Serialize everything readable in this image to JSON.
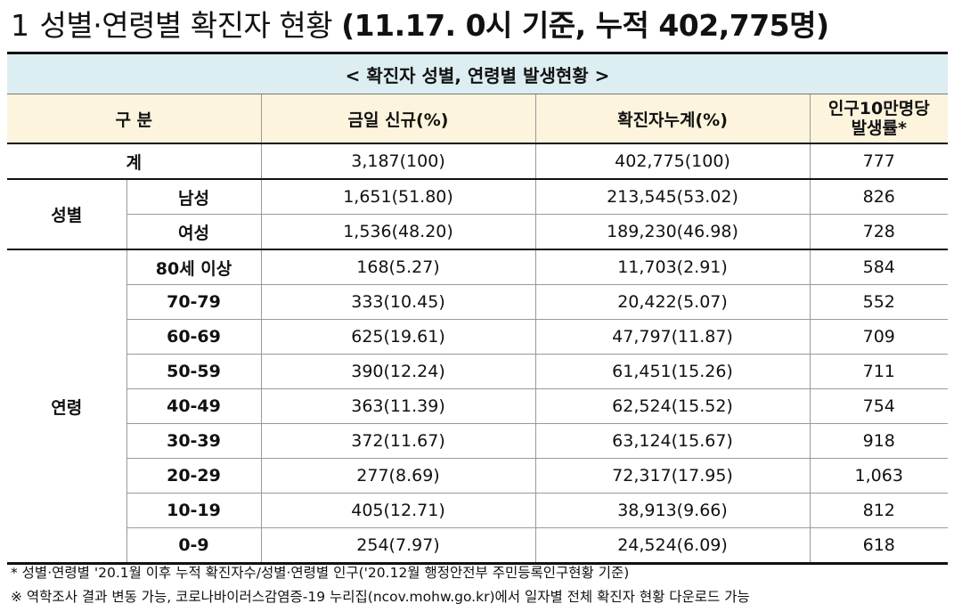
{
  "title": {
    "number": "1",
    "text": "성별·연령별 확진자 현황",
    "detail": "(11.17. 0시 기준, 누적 402,775명)"
  },
  "table": {
    "caption": "< 확진자 성별, 연령별 발생현황 >",
    "headers": {
      "category": "구 분",
      "new_today": "금일 신규(%)",
      "cumulative": "확진자누계(%)",
      "rate_line1": "인구10만명당",
      "rate_line2": "발생률*"
    },
    "total": {
      "label": "계",
      "new": "3,187(100)",
      "cumulative": "402,775(100)",
      "rate": "777"
    },
    "sex": {
      "group": "성별",
      "rows": [
        {
          "label": "남성",
          "new": "1,651(51.80)",
          "cumulative": "213,545(53.02)",
          "rate": "826"
        },
        {
          "label": "여성",
          "new": "1,536(48.20)",
          "cumulative": "189,230(46.98)",
          "rate": "728"
        }
      ]
    },
    "age": {
      "group": "연령",
      "rows": [
        {
          "label": "80세 이상",
          "new": "168(5.27)",
          "cumulative": "11,703(2.91)",
          "rate": "584"
        },
        {
          "label": "70-79",
          "new": "333(10.45)",
          "cumulative": "20,422(5.07)",
          "rate": "552"
        },
        {
          "label": "60-69",
          "new": "625(19.61)",
          "cumulative": "47,797(11.87)",
          "rate": "709"
        },
        {
          "label": "50-59",
          "new": "390(12.24)",
          "cumulative": "61,451(15.26)",
          "rate": "711"
        },
        {
          "label": "40-49",
          "new": "363(11.39)",
          "cumulative": "62,524(15.52)",
          "rate": "754"
        },
        {
          "label": "30-39",
          "new": "372(11.67)",
          "cumulative": "63,124(15.67)",
          "rate": "918"
        },
        {
          "label": "20-29",
          "new": "277(8.69)",
          "cumulative": "72,317(17.95)",
          "rate": "1,063"
        },
        {
          "label": "10-19",
          "new": "405(12.71)",
          "cumulative": "38,913(9.66)",
          "rate": "812"
        },
        {
          "label": "0-9",
          "new": "254(7.97)",
          "cumulative": "24,524(6.09)",
          "rate": "618"
        }
      ]
    }
  },
  "notes": [
    "* 성별·연령별 '20.1월 이후 누적 확진자수/성별·연령별 인구('20.12월 행정안전부 주민등록인구현황 기준)",
    "※ 역학조사 결과 변동 가능, 코로나바이러스감염증-19 누리집(ncov.mohw.go.kr)에서 일자별 전체 확진자 현황 다운로드 가능"
  ]
}
